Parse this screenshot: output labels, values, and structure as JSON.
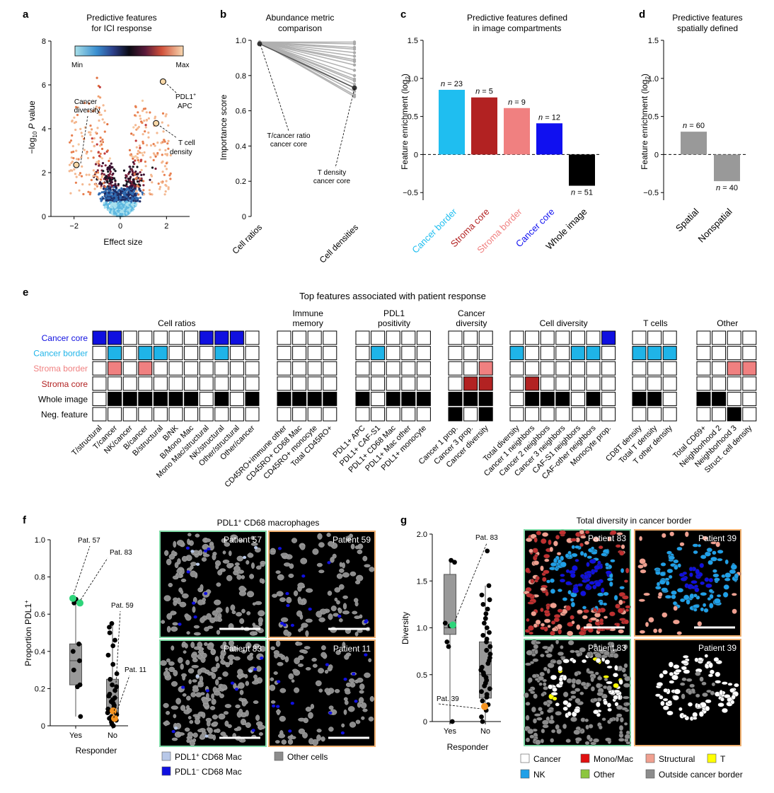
{
  "panel_a": {
    "letter": "a",
    "title_line1": "Predictive features",
    "title_line2": "for ICI response",
    "colorbar_min": "Min",
    "colorbar_max": "Max",
    "y_label_pre": "−log",
    "y_label_sub": "10",
    "y_label_p": "P",
    "y_label_post": " value",
    "x_label": "Effect size",
    "annotation_cancer_div": [
      "Cancer",
      "diversity"
    ],
    "annotation_pdl1_apc": [
      "PDL1",
      "APC"
    ],
    "annotation_pdl1_sup": "+",
    "annotation_t_density": [
      "T cell",
      "density"
    ]
  },
  "panel_b": {
    "letter": "b",
    "title_line1": "Abundance metric",
    "title_line2": "comparison",
    "y_label": "Importance score",
    "ann_ratio": [
      "T/cancer ratio",
      "cancer core"
    ],
    "ann_density": [
      "T density",
      "cancer core"
    ]
  },
  "panel_c": {
    "letter": "c",
    "title_line1": "Predictive features defined",
    "title_line2": "in image compartments",
    "y_label_pre": "Feature enrichment (log",
    "y_label_sub": "2",
    "y_label_post": ")"
  },
  "panel_d": {
    "letter": "d",
    "title_line1": "Predictive features",
    "title_line2": "spatially defined",
    "y_label_pre": "Feature enrichment (log",
    "y_label_sub": "2",
    "y_label_post": ")"
  },
  "panel_e": {
    "letter": "e",
    "title": "Top features associated with patient response",
    "row_labels": [
      "Cancer core",
      "Cancer border",
      "Stroma border",
      "Stroma core",
      "Whole image",
      "Neg. feature"
    ],
    "row_colors": [
      "#1010e0",
      "#1fb4e8",
      "#f08080",
      "#b22222",
      "#000000",
      "#000000"
    ],
    "groups": [
      {
        "title": [
          "Cell ratios"
        ],
        "cols": [
          "T/structural",
          "T/cancer",
          "NK/cancer",
          "B/cancer",
          "B/structural",
          "B/NK",
          "B/Mono Mac",
          "Mono Mac/structural",
          "NK/structural",
          "Other/structural",
          "Other/cancer"
        ],
        "cells": [
          [
            1,
            1,
            0,
            0,
            0,
            0,
            0,
            1,
            1,
            1,
            0
          ],
          [
            0,
            1,
            0,
            1,
            1,
            0,
            0,
            0,
            1,
            0,
            0
          ],
          [
            0,
            1,
            0,
            1,
            0,
            0,
            0,
            0,
            0,
            0,
            0
          ],
          [
            0,
            0,
            0,
            0,
            0,
            0,
            0,
            0,
            0,
            0,
            0
          ],
          [
            0,
            1,
            1,
            1,
            1,
            1,
            1,
            0,
            1,
            0,
            1
          ],
          [
            0,
            0,
            0,
            0,
            0,
            0,
            0,
            0,
            0,
            0,
            0
          ]
        ]
      },
      {
        "title": [
          "Immune",
          "memory"
        ],
        "cols": [
          "CD45RO+immune other",
          "CD45RO+ CD68 Mac",
          "CD45RO+ monocyte",
          "Total CD45RO+"
        ],
        "cells": [
          [
            0,
            0,
            0,
            0
          ],
          [
            0,
            0,
            0,
            0
          ],
          [
            0,
            0,
            0,
            0
          ],
          [
            0,
            0,
            0,
            0
          ],
          [
            1,
            1,
            1,
            1
          ],
          [
            0,
            0,
            0,
            0
          ]
        ]
      },
      {
        "title": [
          "PDL1",
          "positivity"
        ],
        "cols": [
          "PDL1+ APC",
          "PDL1+ CAF-S1",
          "PDL1+ CD68 Mac",
          "PDL1+ Mac other",
          "PDL1+ monocyte"
        ],
        "cells": [
          [
            0,
            0,
            0,
            0,
            0
          ],
          [
            0,
            1,
            0,
            0,
            0
          ],
          [
            0,
            0,
            0,
            0,
            0
          ],
          [
            0,
            0,
            0,
            0,
            0
          ],
          [
            1,
            0,
            1,
            1,
            1
          ],
          [
            0,
            0,
            0,
            0,
            0
          ]
        ]
      },
      {
        "title": [
          "Cancer",
          "diversity"
        ],
        "cols": [
          "Cancer 1 prop.",
          "Cancer 3 prop.",
          "Cancer diversity"
        ],
        "cells": [
          [
            0,
            0,
            0
          ],
          [
            0,
            0,
            0
          ],
          [
            0,
            0,
            1
          ],
          [
            0,
            1,
            1
          ],
          [
            1,
            1,
            1
          ],
          [
            1,
            0,
            1
          ]
        ]
      },
      {
        "title": [
          "Cell diversity"
        ],
        "cols": [
          "Total diversity",
          "Cancer 1 neighbors",
          "Cancer 2 neighbors",
          "Cancer 3 neighbors",
          "CAF-S1 neighbors",
          "CAF-other neighbors",
          "Monocyte prop."
        ],
        "cells": [
          [
            0,
            0,
            0,
            0,
            0,
            0,
            1
          ],
          [
            1,
            0,
            0,
            0,
            1,
            1,
            0
          ],
          [
            0,
            0,
            0,
            0,
            0,
            0,
            0
          ],
          [
            0,
            1,
            0,
            0,
            0,
            0,
            0
          ],
          [
            0,
            1,
            1,
            1,
            0,
            1,
            0
          ],
          [
            0,
            0,
            0,
            0,
            0,
            0,
            0
          ]
        ]
      },
      {
        "title": [
          "T cells"
        ],
        "cols": [
          "CD8T density",
          "Total T density",
          "T other density"
        ],
        "cells": [
          [
            0,
            0,
            0
          ],
          [
            1,
            1,
            1
          ],
          [
            0,
            0,
            0
          ],
          [
            0,
            0,
            0
          ],
          [
            1,
            1,
            0
          ],
          [
            0,
            0,
            0
          ]
        ]
      },
      {
        "title": [
          "Other"
        ],
        "cols": [
          "Total CD69+",
          "Neighborhood 2",
          "Neighborhood 3",
          "Struct. cell density"
        ],
        "cells": [
          [
            0,
            0,
            0,
            0
          ],
          [
            0,
            0,
            0,
            0
          ],
          [
            0,
            0,
            1,
            1
          ],
          [
            0,
            0,
            0,
            0
          ],
          [
            1,
            1,
            0,
            0
          ],
          [
            0,
            0,
            1,
            0
          ]
        ]
      }
    ]
  },
  "panel_f": {
    "letter": "f",
    "y_label_pre": "Proportion PDL1",
    "y_label_sup": "+",
    "x_label": "Responder",
    "image_title_pre": "PDL1",
    "image_title_sup": "+",
    "image_title_post": " CD68 macrophages",
    "legend": [
      {
        "label_pre": "PDL1",
        "sup": "+",
        "label_post": " CD68 Mac",
        "color": "#b8c8e8"
      },
      {
        "label_pre": "PDL1",
        "sup": "−",
        "label_post": "  CD68 Mac",
        "color": "#1010e0"
      },
      {
        "label_pre": "Other cells",
        "sup": "",
        "label_post": "",
        "color": "#8c8c8c"
      }
    ]
  },
  "panel_g": {
    "letter": "g",
    "y_label": "Diversity",
    "x_label": "Responder",
    "image_title": "Total diversity in cancer border",
    "legend": [
      {
        "label": "Cancer",
        "color": "#ffffff"
      },
      {
        "label": "Mono/Mac",
        "color": "#e01010"
      },
      {
        "label": "Structural",
        "color": "#f0a090"
      },
      {
        "label": "T",
        "color": "#ffff00"
      },
      {
        "label": "NK",
        "color": "#1fa0e8"
      },
      {
        "label": "Other",
        "color": "#8cc63f"
      },
      {
        "label": "Outside cancer border",
        "color": "#8c8c8c"
      }
    ]
  },
  "chart_data": [
    {
      "panel": "a",
      "type": "scatter",
      "title": "Predictive features for ICI response",
      "xlabel": "Effect size",
      "ylabel": "−log10 P value",
      "xlim": [
        -3,
        3
      ],
      "ylim": [
        0,
        8
      ],
      "xticks": [
        "−2",
        "0",
        "2"
      ],
      "yticks": [
        "0",
        "2",
        "4",
        "6",
        "8"
      ],
      "highlighted": [
        {
          "label": "Cancer diversity",
          "x": -1.9,
          "y": 2.35
        },
        {
          "label": "PDL1+ APC",
          "x": 1.85,
          "y": 6.15
        },
        {
          "label": "T cell density",
          "x": 1.55,
          "y": 4.25
        }
      ]
    },
    {
      "panel": "b",
      "type": "line",
      "title": "Abundance metric comparison",
      "ylabel": "Importance score",
      "categories": [
        "Cell ratios",
        "Cell densities"
      ],
      "ylim": [
        0,
        1.0
      ],
      "yticks": [
        "0",
        "0.2",
        "0.4",
        "0.6",
        "0.8",
        "1.0"
      ],
      "pairs": [
        [
          0.99,
          0.99
        ],
        [
          0.99,
          0.98
        ],
        [
          0.99,
          0.96
        ],
        [
          0.99,
          0.95
        ],
        [
          0.99,
          0.93
        ],
        [
          0.99,
          0.91
        ],
        [
          0.99,
          0.89
        ],
        [
          0.99,
          0.88
        ],
        [
          0.99,
          0.86
        ],
        [
          0.99,
          0.83
        ],
        [
          0.99,
          0.8
        ],
        [
          0.99,
          0.78
        ],
        [
          0.99,
          0.77
        ],
        [
          0.99,
          0.75
        ],
        [
          0.99,
          0.73
        ],
        [
          0.99,
          0.71
        ],
        [
          0.99,
          0.69
        ],
        [
          0.99,
          0.68
        ]
      ],
      "highlighted": {
        "x0": 0.98,
        "x1": 0.73
      }
    },
    {
      "panel": "c",
      "type": "bar",
      "title": "Predictive features defined in image compartments",
      "ylabel": "Feature enrichment (log2)",
      "categories": [
        "Cancer border",
        "Stroma core",
        "Stroma border",
        "Cancer core",
        "Whole image"
      ],
      "category_colors": [
        "#1fbef0",
        "#b22222",
        "#f08080",
        "#1010f0",
        "#000000"
      ],
      "values": [
        0.85,
        0.75,
        0.61,
        0.41,
        -0.41
      ],
      "labels": [
        "n = 23",
        "n = 5",
        "n = 9",
        "n = 12",
        "n = 51"
      ],
      "ylim": [
        -0.6,
        1.5
      ],
      "yticks": [
        "−0.5",
        "0",
        "0.5",
        "1.0",
        "1.5"
      ]
    },
    {
      "panel": "d",
      "type": "bar",
      "title": "Predictive features spatially defined",
      "ylabel": "Feature enrichment (log2)",
      "categories": [
        "Spatial",
        "Nonspatial"
      ],
      "category_colors": [
        "#999999",
        "#999999"
      ],
      "values": [
        0.3,
        -0.35
      ],
      "labels": [
        "n = 60",
        "n = 40"
      ],
      "ylim": [
        -0.6,
        1.5
      ],
      "yticks": [
        "−0.5",
        "0",
        "0.5",
        "1.0",
        "1.5"
      ]
    },
    {
      "panel": "f",
      "type": "scatter",
      "ylabel": "Proportion PDL1+",
      "xlabel": "Responder",
      "categories": [
        "Yes",
        "No"
      ],
      "ylim": [
        0,
        1.0
      ],
      "yticks": [
        "0",
        "0.2",
        "0.4",
        "0.6",
        "0.8",
        "1.0"
      ],
      "box": [
        {
          "q1": 0.22,
          "median": 0.35,
          "q3": 0.44,
          "min": 0.05,
          "max": 0.68
        },
        {
          "q1": 0.07,
          "median": 0.15,
          "q3": 0.25,
          "min": 0.0,
          "max": 0.55
        }
      ],
      "yes_points": [
        0.68,
        0.66,
        0.44,
        0.4,
        0.35,
        0.3,
        0.22,
        0.21,
        0.05
      ],
      "no_points": [
        0.55,
        0.53,
        0.5,
        0.46,
        0.43,
        0.38,
        0.33,
        0.28,
        0.25,
        0.22,
        0.21,
        0.19,
        0.17,
        0.16,
        0.15,
        0.14,
        0.13,
        0.12,
        0.11,
        0.1,
        0.09,
        0.08,
        0.07,
        0.06,
        0.05,
        0.04,
        0.03,
        0.02,
        0.01,
        0.0
      ],
      "highlighted": [
        {
          "label": "Pat. 57",
          "cat": "Yes",
          "y": 0.68,
          "color": "#2ed47a"
        },
        {
          "label": "Pat. 83",
          "cat": "Yes",
          "y": 0.66,
          "color": "#2ed47a"
        },
        {
          "label": "Pat. 59",
          "cat": "No",
          "y": 0.07,
          "color": "#f59320"
        },
        {
          "label": "Pat. 11",
          "cat": "No",
          "y": 0.04,
          "color": "#f59320"
        }
      ]
    },
    {
      "panel": "g",
      "type": "scatter",
      "ylabel": "Diversity",
      "xlabel": "Responder",
      "categories": [
        "Yes",
        "No"
      ],
      "ylim": [
        0,
        2.0
      ],
      "yticks": [
        "0",
        "0.5",
        "1.0",
        "1.5",
        "2.0"
      ],
      "box": [
        {
          "q1": 0.93,
          "median": 1.0,
          "q3": 1.57,
          "min": 0.0,
          "max": 1.72
        },
        {
          "q1": 0.25,
          "median": 0.5,
          "q3": 0.85,
          "min": 0.0,
          "max": 1.45
        }
      ],
      "yes_points": [
        1.72,
        1.7,
        1.05,
        1.02,
        0.85,
        0.8,
        0.0
      ],
      "no_points": [
        1.82,
        1.45,
        1.35,
        1.3,
        1.25,
        1.2,
        1.15,
        1.1,
        1.05,
        1.0,
        0.95,
        0.92,
        0.88,
        0.85,
        0.8,
        0.76,
        0.72,
        0.68,
        0.65,
        0.62,
        0.58,
        0.55,
        0.52,
        0.5,
        0.47,
        0.44,
        0.41,
        0.38,
        0.35,
        0.32,
        0.29,
        0.26,
        0.22,
        0.18,
        0.12,
        0.05,
        0.0
      ],
      "highlighted": [
        {
          "label": "Pat. 83",
          "cat": "Yes",
          "y": 1.03,
          "color": "#2ed47a"
        },
        {
          "label": "Pat. 39",
          "cat": "No",
          "y": 0.16,
          "color": "#f59320"
        }
      ]
    }
  ],
  "tiles_f": [
    {
      "label": "Patient 57",
      "border": "#7fd9a6",
      "density": "mid",
      "mac": "#b8c8e8"
    },
    {
      "label": "Patient 59",
      "border": "#f0b070",
      "density": "low",
      "mac": "#1010e0"
    },
    {
      "label": "Patient 83",
      "border": "#7fd9a6",
      "density": "high",
      "mac": "#b8c8e8"
    },
    {
      "label": "Patient 11",
      "border": "#f0b070",
      "density": "low",
      "mac": "#1010e0"
    }
  ],
  "tiles_g": [
    {
      "label": "Patient 83",
      "border": "#7fd9a6",
      "mode": "ct83"
    },
    {
      "label": "Patient 39",
      "border": "#f0b070",
      "mode": "ct39"
    },
    {
      "label": "Patient 83",
      "border": "#7fd9a6",
      "mode": "ws83"
    },
    {
      "label": "Patient 39",
      "border": "#f0b070",
      "mode": "ws39"
    }
  ]
}
